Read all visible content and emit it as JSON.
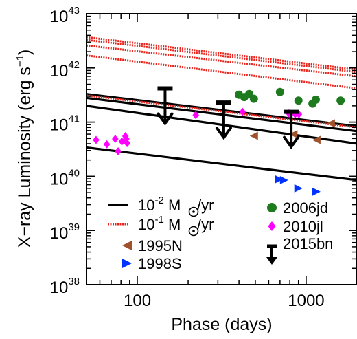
{
  "chart_data": {
    "type": "scatter",
    "xlabel": "Phase (days)",
    "ylabel_parts": {
      "main": "X−ray Luminosity (erg s",
      "sup": "−1",
      "close": ")"
    },
    "x_scale": "log",
    "y_scale": "log",
    "xlim": [
      50,
      2000
    ],
    "ylim": [
      1e+38,
      1e+43
    ],
    "x_ticks": [
      {
        "value": 100,
        "label": "100"
      },
      {
        "value": 1000,
        "label": "1000"
      }
    ],
    "y_ticks": [
      {
        "value": 1e+38,
        "base": "10",
        "exp": "38"
      },
      {
        "value": 1e+39,
        "base": "10",
        "exp": "39"
      },
      {
        "value": 1e+40,
        "base": "10",
        "exp": "40"
      },
      {
        "value": 1e+41,
        "base": "10",
        "exp": "41"
      },
      {
        "value": 1e+42,
        "base": "10",
        "exp": "42"
      },
      {
        "value": 1e+43,
        "base": "10",
        "exp": "43"
      }
    ],
    "model_lines": [
      {
        "group": "1e-2",
        "color": "#000000",
        "style": "solid",
        "points": [
          [
            50,
            3.4e+40
          ],
          [
            2000,
            8.5e+39
          ]
        ]
      },
      {
        "group": "1e-2",
        "color": "#000000",
        "style": "solid",
        "points": [
          [
            50,
            2e+41
          ],
          [
            2000,
            4e+40
          ]
        ]
      },
      {
        "group": "1e-2",
        "color": "#000000",
        "style": "solid",
        "points": [
          [
            50,
            2.8e+41
          ],
          [
            2000,
            6.8e+40
          ]
        ]
      },
      {
        "group": "1e-2",
        "color": "#000000",
        "style": "solid",
        "points": [
          [
            50,
            3.3e+41
          ],
          [
            2000,
            8.4e+40
          ]
        ]
      },
      {
        "group": "1e-1",
        "color": "#e8241c",
        "style": "dotted",
        "points": [
          [
            50,
            1.7e+42
          ],
          [
            2000,
            4.2e+41
          ]
        ]
      },
      {
        "group": "1e-1",
        "color": "#e8241c",
        "style": "dotted",
        "points": [
          [
            50,
            2.6e+42
          ],
          [
            2000,
            7e+41
          ]
        ]
      },
      {
        "group": "1e-1",
        "color": "#e8241c",
        "style": "dotted",
        "points": [
          [
            50,
            3.3e+42
          ],
          [
            2000,
            8.4e+41
          ]
        ]
      },
      {
        "group": "1e-1",
        "color": "#e8241c",
        "style": "dotted",
        "points": [
          [
            50,
            3.7e+42
          ],
          [
            2000,
            9.3e+41
          ]
        ]
      },
      {
        "group": "1e-1",
        "color": "#e8241c",
        "style": "dotted",
        "points": [
          [
            50,
            3.1e+41
          ],
          [
            2000,
            8e+40
          ]
        ]
      }
    ],
    "series": [
      {
        "name": "2006jd",
        "marker": "circle",
        "color": "#1e7a1e",
        "points": [
          [
            400,
            3.2e+41
          ],
          [
            430,
            2.9e+41
          ],
          [
            460,
            3.3e+41
          ],
          [
            490,
            2.7e+41
          ],
          [
            700,
            3.6e+41
          ],
          [
            900,
            2.5e+41
          ],
          [
            1090,
            2.2e+41
          ],
          [
            1140,
            2.6e+41
          ],
          [
            1600,
            2.5e+41
          ]
        ]
      },
      {
        "name": "2010jl",
        "marker": "diamond",
        "color": "#ff00ff",
        "points": [
          [
            57,
            4.7e+40
          ],
          [
            66,
            3.9e+40
          ],
          [
            74,
            4.9e+40
          ],
          [
            77,
            2.9e+40
          ],
          [
            81,
            4.4e+40
          ],
          [
            85,
            5.5e+40
          ],
          [
            86,
            4.9e+40
          ],
          [
            87,
            4.1e+40
          ],
          [
            222,
            1.35e+41
          ],
          [
            420,
            1.55e+41
          ],
          [
            790,
            1.45e+41
          ],
          [
            860,
            1.4e+41
          ],
          [
            905,
            1.4e+41
          ]
        ]
      },
      {
        "name": "1995N",
        "marker": "triangle-left",
        "color": "#a0522d",
        "points": [
          [
            490,
            5.6e+40
          ],
          [
            840,
            6e+40
          ],
          [
            1150,
            4.7e+40
          ],
          [
            1400,
            9.5e+40
          ]
        ]
      },
      {
        "name": "1998S",
        "marker": "triangle-right",
        "color": "#0033ff",
        "points": [
          [
            690,
            8.8e+39
          ],
          [
            740,
            8.5e+39
          ],
          [
            900,
            6e+39
          ],
          [
            1150,
            5.2e+39
          ]
        ]
      },
      {
        "name": "2015bn",
        "marker": "upper-limit",
        "color": "#000000",
        "points": [
          [
            146,
            4.2e+41
          ],
          [
            325,
            2.3e+41
          ],
          [
            815,
            1.55e+41
          ]
        ]
      }
    ],
    "legend": {
      "placement": "bottom",
      "entries": [
        {
          "key": "1e-2",
          "style": "solid",
          "color": "#000000",
          "base": "10",
          "exp": "-2",
          "unit": "M",
          "per": "/yr"
        },
        {
          "key": "1e-1",
          "style": "dotted",
          "color": "#e8241c",
          "base": "10",
          "exp": "-1",
          "unit": "M",
          "per": "/yr"
        },
        {
          "key": "1995N",
          "label": "1995N",
          "marker": "triangle-left",
          "color": "#a0522d"
        },
        {
          "key": "1998S",
          "label": "1998S",
          "marker": "triangle-right",
          "color": "#0033ff"
        },
        {
          "key": "2006jd",
          "label": "2006jd",
          "marker": "circle",
          "color": "#1e7a1e"
        },
        {
          "key": "2010jl",
          "label": "2010jl",
          "marker": "diamond",
          "color": "#ff00ff"
        },
        {
          "key": "2015bn",
          "label": "2015bn",
          "marker": "upper-limit",
          "color": "#000000"
        }
      ]
    },
    "grid": false
  }
}
